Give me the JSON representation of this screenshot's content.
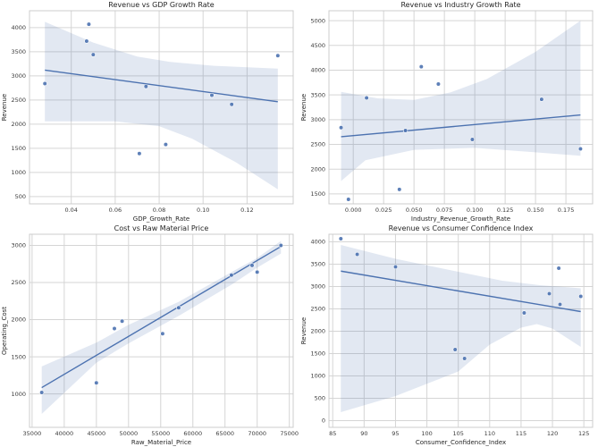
{
  "figure": {
    "background": "#ffffff",
    "accent_color": "#4c72b0",
    "band_color": "#4c72b0",
    "band_opacity": 0.16,
    "grid_color": "#d5d5d5",
    "border_color": "#cccccc",
    "text_color": "#262626",
    "tick_color": "#3b3b3b"
  },
  "chart_data": [
    {
      "type": "scatter",
      "title": "Revenue vs GDP Growth Rate",
      "xlabel": "GDP_Growth_Rate",
      "ylabel": "Revenue",
      "xlim": [
        0.021,
        0.141
      ],
      "ylim": [
        350,
        4350
      ],
      "xticks": [
        0.04,
        0.06,
        0.08,
        0.1,
        0.12
      ],
      "xtick_labels": [
        "0.04",
        "0.06",
        "0.08",
        "0.10",
        "0.12"
      ],
      "yticks": [
        500,
        1000,
        1500,
        2000,
        2500,
        3000,
        3500,
        4000
      ],
      "ytick_labels": [
        "500",
        "1000",
        "1500",
        "2000",
        "2500",
        "3000",
        "3500",
        "4000"
      ],
      "points": [
        [
          0.028,
          2840
        ],
        [
          0.047,
          3720
        ],
        [
          0.048,
          4070
        ],
        [
          0.05,
          3440
        ],
        [
          0.071,
          1390
        ],
        [
          0.074,
          2780
        ],
        [
          0.083,
          1580
        ],
        [
          0.104,
          2600
        ],
        [
          0.113,
          2410
        ],
        [
          0.134,
          3420
        ]
      ],
      "regression_line": [
        [
          0.028,
          3120
        ],
        [
          0.134,
          2465
        ]
      ],
      "confidence_band": [
        [
          0.028,
          4120
        ],
        [
          0.05,
          3690
        ],
        [
          0.07,
          3400
        ],
        [
          0.085,
          3290
        ],
        [
          0.105,
          3210
        ],
        [
          0.134,
          3150
        ],
        [
          0.134,
          650
        ],
        [
          0.115,
          1210
        ],
        [
          0.095,
          1700
        ],
        [
          0.08,
          1960
        ],
        [
          0.06,
          2060
        ],
        [
          0.028,
          2060
        ]
      ]
    },
    {
      "type": "scatter",
      "title": "Revenue vs Industry Growth Rate",
      "xlabel": "Industry_Revenue_Growth_Rate",
      "ylabel": "Revenue",
      "xlim": [
        -0.02,
        0.197
      ],
      "ylim": [
        1300,
        5200
      ],
      "xticks": [
        0.0,
        0.025,
        0.05,
        0.075,
        0.1,
        0.125,
        0.15,
        0.175
      ],
      "xtick_labels": [
        "0.000",
        "0.025",
        "0.050",
        "0.075",
        "0.100",
        "0.125",
        "0.150",
        "0.175"
      ],
      "yticks": [
        1500,
        2000,
        2500,
        3000,
        3500,
        4000,
        4500,
        5000
      ],
      "ytick_labels": [
        "1500",
        "2000",
        "2500",
        "3000",
        "3500",
        "4000",
        "4500",
        "5000"
      ],
      "points": [
        [
          -0.01,
          2840
        ],
        [
          -0.004,
          1390
        ],
        [
          0.011,
          3440
        ],
        [
          0.038,
          1590
        ],
        [
          0.043,
          2780
        ],
        [
          0.056,
          4070
        ],
        [
          0.07,
          3720
        ],
        [
          0.098,
          2600
        ],
        [
          0.155,
          3410
        ],
        [
          0.187,
          2410
        ]
      ],
      "regression_line": [
        [
          -0.01,
          2655
        ],
        [
          0.187,
          3095
        ]
      ],
      "confidence_band": [
        [
          -0.01,
          3560
        ],
        [
          0.02,
          3430
        ],
        [
          0.05,
          3400
        ],
        [
          0.08,
          3550
        ],
        [
          0.11,
          3820
        ],
        [
          0.15,
          4370
        ],
        [
          0.187,
          5000
        ],
        [
          0.187,
          2270
        ],
        [
          0.15,
          2340
        ],
        [
          0.1,
          2430
        ],
        [
          0.05,
          2390
        ],
        [
          0.01,
          2180
        ],
        [
          -0.01,
          1760
        ]
      ]
    },
    {
      "type": "scatter",
      "title": "Cost vs Raw Material Price",
      "xlabel": "Raw_Material_Price",
      "ylabel": "Operating_Cost",
      "xlim": [
        34600,
        75600
      ],
      "ylim": [
        550,
        3150
      ],
      "xticks": [
        35000,
        40000,
        45000,
        50000,
        55000,
        60000,
        65000,
        70000,
        75000
      ],
      "xtick_labels": [
        "35000",
        "40000",
        "45000",
        "50000",
        "55000",
        "60000",
        "65000",
        "70000",
        "75000"
      ],
      "yticks": [
        1000,
        1500,
        2000,
        2500,
        3000
      ],
      "ytick_labels": [
        "1000",
        "1500",
        "2000",
        "2500",
        "3000"
      ],
      "points": [
        [
          36500,
          1020
        ],
        [
          45000,
          1150
        ],
        [
          47800,
          1880
        ],
        [
          49000,
          1980
        ],
        [
          55300,
          1810
        ],
        [
          57800,
          2160
        ],
        [
          66000,
          2600
        ],
        [
          69200,
          2730
        ],
        [
          70000,
          2640
        ],
        [
          73700,
          3000
        ]
      ],
      "regression_line": [
        [
          36500,
          1085
        ],
        [
          73700,
          2985
        ]
      ],
      "confidence_band": [
        [
          36500,
          1370
        ],
        [
          45000,
          1690
        ],
        [
          50000,
          1930
        ],
        [
          57800,
          2240
        ],
        [
          66000,
          2640
        ],
        [
          70000,
          2830
        ],
        [
          73700,
          3060
        ],
        [
          73700,
          2890
        ],
        [
          70000,
          2700
        ],
        [
          66000,
          2470
        ],
        [
          57800,
          2050
        ],
        [
          50000,
          1680
        ],
        [
          45000,
          1420
        ],
        [
          36500,
          730
        ]
      ]
    },
    {
      "type": "scatter",
      "title": "Revenue vs Consumer Confidence Index",
      "xlabel": "Consumer_Confidence_Index",
      "ylabel": "Revenue",
      "xlim": [
        84.4,
        126.4
      ],
      "ylim": [
        -150,
        4170
      ],
      "xticks": [
        85,
        90,
        95,
        100,
        105,
        110,
        115,
        120,
        125
      ],
      "xtick_labels": [
        "85",
        "90",
        "95",
        "100",
        "105",
        "110",
        "115",
        "120",
        "125"
      ],
      "yticks": [
        0,
        500,
        1000,
        1500,
        2000,
        2500,
        3000,
        3500,
        4000
      ],
      "ytick_labels": [
        "0",
        "500",
        "1000",
        "1500",
        "2000",
        "2500",
        "3000",
        "3500",
        "4000"
      ],
      "points": [
        [
          86.3,
          4070
        ],
        [
          88.9,
          3720
        ],
        [
          95.0,
          3440
        ],
        [
          104.5,
          1590
        ],
        [
          106.0,
          1390
        ],
        [
          115.5,
          2410
        ],
        [
          119.5,
          2840
        ],
        [
          121.0,
          3410
        ],
        [
          121.2,
          2600
        ],
        [
          124.5,
          2780
        ]
      ],
      "regression_line": [
        [
          86.3,
          3345
        ],
        [
          124.5,
          2440
        ]
      ],
      "confidence_band": [
        [
          86.3,
          3930
        ],
        [
          95,
          3620
        ],
        [
          105,
          3330
        ],
        [
          112,
          3130
        ],
        [
          118,
          3030
        ],
        [
          121,
          3000
        ],
        [
          124.5,
          2960
        ],
        [
          124.5,
          1650
        ],
        [
          120,
          2060
        ],
        [
          117.5,
          2160
        ],
        [
          115,
          2080
        ],
        [
          110,
          1700
        ],
        [
          105,
          1100
        ],
        [
          95,
          550
        ],
        [
          86.3,
          190
        ]
      ]
    }
  ]
}
